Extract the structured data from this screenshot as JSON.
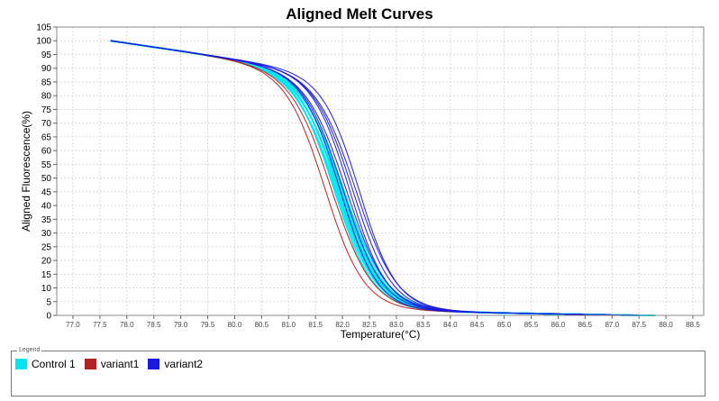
{
  "chart_data": {
    "type": "line",
    "title": "Aligned Melt Curves",
    "xlabel": "Temperature(°C)",
    "ylabel": "Aligned Fluorescence(%)",
    "xlim": [
      76.7,
      88.7
    ],
    "ylim": [
      0,
      105
    ],
    "x_ticks": [
      "77.0",
      "77.5",
      "78.0",
      "78.5",
      "79.0",
      "79.5",
      "80.0",
      "80.5",
      "81.0",
      "81.5",
      "82.0",
      "82.5",
      "83.0",
      "83.5",
      "84.0",
      "84.5",
      "85.0",
      "85.5",
      "86.0",
      "86.5",
      "87.0",
      "87.5",
      "88.0",
      "88.5"
    ],
    "y_ticks": [
      0,
      5,
      10,
      15,
      20,
      25,
      30,
      35,
      40,
      45,
      50,
      55,
      60,
      65,
      70,
      75,
      80,
      85,
      90,
      95,
      100,
      105
    ],
    "grid": true,
    "legend_title": "Legend",
    "series": [
      {
        "name": "Control 1",
        "color": "#00e5ee",
        "tm": 81.95,
        "width": 0.38,
        "count": 9,
        "spread": 0.09
      },
      {
        "name": "variant1",
        "color": "#b22222",
        "tm": 81.75,
        "width": 0.38,
        "count": 2,
        "spread": 0.06
      },
      {
        "name": "variant2",
        "color": "#1a1adf",
        "tm": 82.15,
        "width": 0.36,
        "count": 7,
        "spread": 0.18
      }
    ],
    "x_start": 77.7,
    "x_end": 87.8
  }
}
